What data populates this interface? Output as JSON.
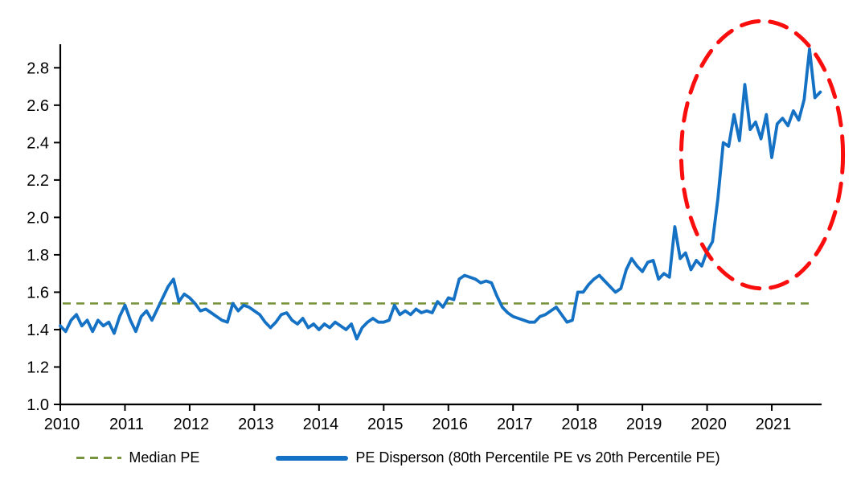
{
  "chart_data": {
    "type": "line",
    "title": "",
    "xlabel": "",
    "ylabel": "",
    "grid": "off",
    "legend_position": "bottom",
    "frequency": "monthly",
    "start_year": 2010,
    "x_range_years": [
      2010,
      2021.77
    ],
    "y_range": [
      1.0,
      2.926
    ],
    "x_ticks": [
      "2010",
      "2011",
      "2012",
      "2013",
      "2014",
      "2015",
      "2016",
      "2017",
      "2018",
      "2019",
      "2020",
      "2021"
    ],
    "y_ticks": [
      "1.0",
      "1.2",
      "1.4",
      "1.6",
      "1.8",
      "2.0",
      "2.2",
      "2.4",
      "2.6",
      "2.8"
    ],
    "series": [
      {
        "name": "PE Disperson (80th Percentile PE vs 20th Percentile PE)",
        "color": "#1471C4",
        "style": "solid",
        "values": [
          1.42,
          1.39,
          1.45,
          1.48,
          1.42,
          1.45,
          1.39,
          1.45,
          1.42,
          1.44,
          1.38,
          1.47,
          1.53,
          1.45,
          1.39,
          1.47,
          1.5,
          1.45,
          1.51,
          1.57,
          1.63,
          1.67,
          1.55,
          1.59,
          1.57,
          1.54,
          1.5,
          1.51,
          1.49,
          1.47,
          1.45,
          1.44,
          1.54,
          1.5,
          1.53,
          1.52,
          1.5,
          1.48,
          1.44,
          1.41,
          1.44,
          1.48,
          1.49,
          1.45,
          1.43,
          1.46,
          1.41,
          1.43,
          1.4,
          1.43,
          1.41,
          1.44,
          1.42,
          1.4,
          1.43,
          1.35,
          1.41,
          1.44,
          1.46,
          1.44,
          1.44,
          1.45,
          1.53,
          1.48,
          1.5,
          1.48,
          1.51,
          1.49,
          1.5,
          1.49,
          1.55,
          1.52,
          1.57,
          1.56,
          1.67,
          1.69,
          1.68,
          1.67,
          1.65,
          1.66,
          1.65,
          1.58,
          1.52,
          1.49,
          1.47,
          1.46,
          1.45,
          1.44,
          1.44,
          1.47,
          1.48,
          1.5,
          1.52,
          1.48,
          1.44,
          1.45,
          1.6,
          1.6,
          1.64,
          1.67,
          1.69,
          1.66,
          1.63,
          1.6,
          1.62,
          1.72,
          1.78,
          1.74,
          1.71,
          1.76,
          1.77,
          1.67,
          1.7,
          1.68,
          1.95,
          1.78,
          1.81,
          1.72,
          1.77,
          1.74,
          1.82,
          1.87,
          2.1,
          2.4,
          2.38,
          2.55,
          2.41,
          2.71,
          2.47,
          2.51,
          2.42,
          2.55,
          2.32,
          2.5,
          2.53,
          2.49,
          2.57,
          2.52,
          2.63,
          2.9,
          2.64,
          2.67
        ]
      }
    ],
    "reference_line": {
      "name": "Median PE",
      "value": 1.54,
      "color": "#78943E",
      "style": "dashed"
    },
    "annotation_ellipse": {
      "description": "red dashed ellipse highlighting 2020-2021 spike",
      "color": "#F90D0D",
      "style": "dashed",
      "x_from": 2019.6,
      "x_to": 2022.1,
      "y_from": 1.62,
      "y_to": 3.05
    }
  },
  "legend": {
    "items": [
      {
        "label": "Median PE",
        "swatch": "dashed-line",
        "color": "#78943E"
      },
      {
        "label": "PE Disperson (80th Percentile PE vs 20th Percentile PE)",
        "swatch": "solid-line",
        "color": "#1471C4"
      }
    ]
  }
}
